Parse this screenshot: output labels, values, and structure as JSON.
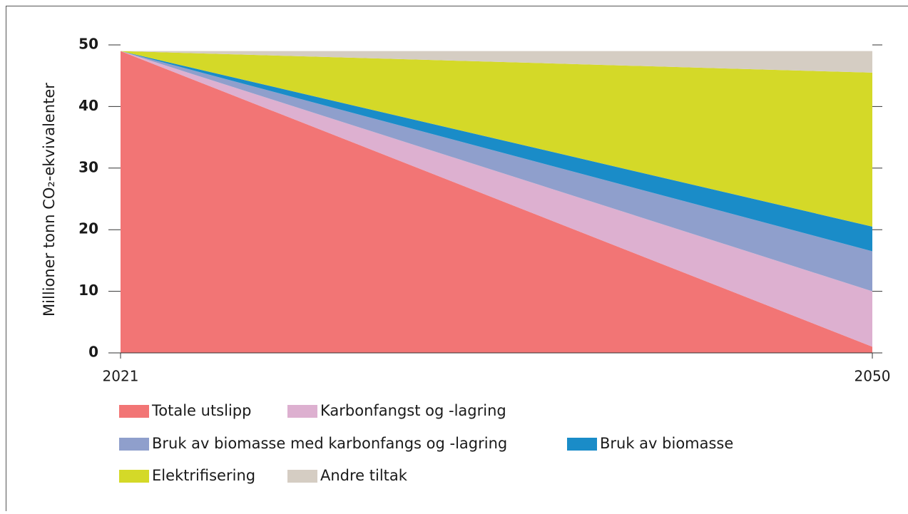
{
  "chart_data": {
    "type": "stacked_area",
    "y_label": "Millioner tonn CO₂-ekvivalenter",
    "x": [
      2021,
      2050
    ],
    "xlim": [
      2021,
      2050
    ],
    "xticks": [
      2021,
      2050
    ],
    "ylim": [
      0,
      50
    ],
    "yticks": [
      0,
      10,
      20,
      30,
      40,
      50
    ],
    "series": [
      {
        "name": "Totale utslipp",
        "color": "#f27575",
        "values": [
          49,
          1
        ]
      },
      {
        "name": "Karbonfangst og -lagring",
        "color": "#ddb0d0",
        "values": [
          0,
          9
        ]
      },
      {
        "name": "Bruk av biomasse med karbonfangs og -lagring",
        "color": "#8f9fcc",
        "values": [
          0,
          6.5
        ]
      },
      {
        "name": "Bruk av biomasse",
        "color": "#1a8cc8",
        "values": [
          0,
          4
        ]
      },
      {
        "name": "Elektrifisering",
        "color": "#d4d928",
        "values": [
          0,
          25
        ]
      },
      {
        "name": "Andre tiltak",
        "color": "#d5cdc3",
        "values": [
          0,
          3.5
        ]
      }
    ]
  }
}
